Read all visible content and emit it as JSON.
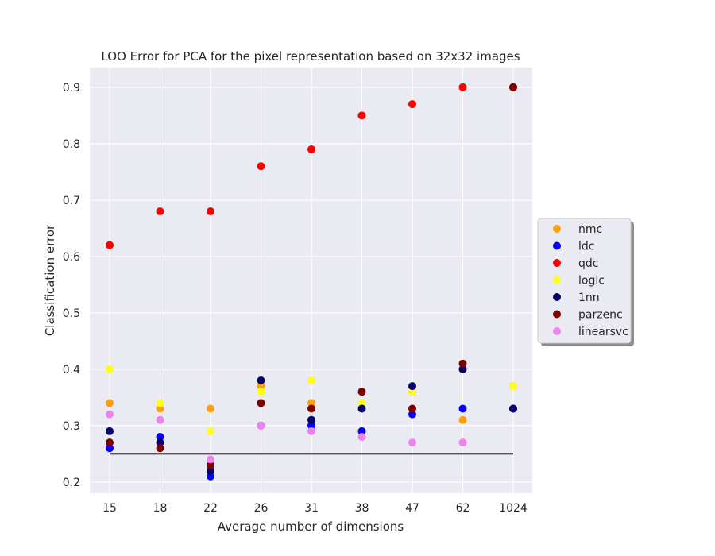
{
  "chart_data": {
    "type": "scatter",
    "title": "LOO Error for PCA for the pixel representation based on 32x32 images",
    "xlabel": "Average number of dimensions",
    "ylabel": "Classification error",
    "categories": [
      "15",
      "18",
      "22",
      "26",
      "31",
      "38",
      "47",
      "62",
      "1024"
    ],
    "ylim": [
      0.18,
      0.935
    ],
    "yticks": [
      "0.2",
      "0.3",
      "0.4",
      "0.5",
      "0.6",
      "0.7",
      "0.8",
      "0.9"
    ],
    "grid": true,
    "legend_position": "right",
    "baseline": {
      "value": 0.25,
      "color": "#000000"
    },
    "series": [
      {
        "name": "nmc",
        "color": "#ff9f0f",
        "values": [
          0.34,
          0.33,
          0.33,
          0.37,
          0.34,
          0.34,
          0.36,
          0.31,
          0.37
        ]
      },
      {
        "name": "ldc",
        "color": "#0000ff",
        "values": [
          0.26,
          0.28,
          0.21,
          0.3,
          0.3,
          0.29,
          0.32,
          0.33,
          0.33
        ]
      },
      {
        "name": "qdc",
        "color": "#ff0000",
        "values": [
          0.62,
          0.68,
          0.68,
          0.76,
          0.79,
          0.85,
          0.87,
          0.9,
          0.9
        ]
      },
      {
        "name": "loglc",
        "color": "#ffff14",
        "values": [
          0.4,
          0.34,
          0.29,
          0.36,
          0.38,
          0.34,
          0.36,
          0.4,
          0.37
        ]
      },
      {
        "name": "1nn",
        "color": "#06006b",
        "values": [
          0.29,
          0.27,
          0.22,
          0.38,
          0.31,
          0.33,
          0.37,
          0.4,
          0.33
        ]
      },
      {
        "name": "parzenc",
        "color": "#800000",
        "values": [
          0.27,
          0.26,
          0.23,
          0.34,
          0.33,
          0.36,
          0.33,
          0.41,
          0.9
        ]
      },
      {
        "name": "linearsvc",
        "color": "#ee82ee",
        "values": [
          0.32,
          0.31,
          0.24,
          0.3,
          0.29,
          0.28,
          0.27,
          0.27,
          null
        ]
      }
    ]
  }
}
